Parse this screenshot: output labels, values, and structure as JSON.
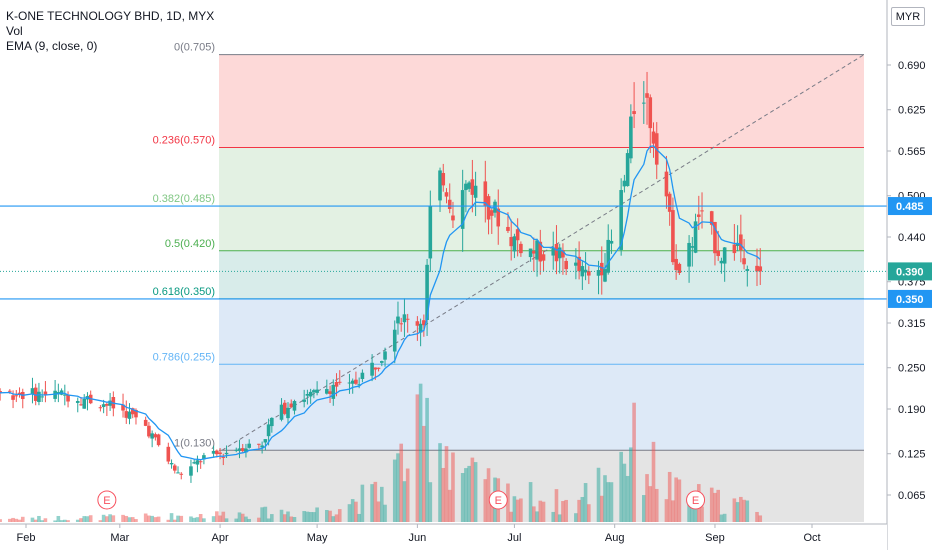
{
  "header": {
    "title": "K-ONE TECHNOLOGY BHD, 1D, MYX",
    "vol_label": "Vol",
    "ema_label": "EMA (9, close, 0)",
    "currency": "MYR"
  },
  "colors": {
    "up": "#26a69a",
    "down": "#ef5350",
    "ema": "#2196f3",
    "price_line": "#2196f3"
  },
  "chart_data": {
    "type": "candlestick",
    "timeframe": "1D",
    "x_labels": [
      "Feb",
      "Mar",
      "Apr",
      "May",
      "Jun",
      "Jul",
      "Aug",
      "Sep",
      "Oct"
    ],
    "y_ticks": [
      "0.690",
      "0.625",
      "0.565",
      "0.500",
      "0.440",
      "0.375",
      "0.315",
      "0.250",
      "0.190",
      "0.125",
      "0.065"
    ],
    "fib_levels": [
      {
        "label": "0(0.705)",
        "value": 0.705,
        "color": "#787b86",
        "fill": "#fdd9d8"
      },
      {
        "label": "0.236(0.570)",
        "value": 0.57,
        "color": "#f23645",
        "fill": "#e3f1e3"
      },
      {
        "label": "0.382(0.485)",
        "value": 0.485,
        "color": "#81c784",
        "fill": "#e3f1e3"
      },
      {
        "label": "0.5(0.420)",
        "value": 0.42,
        "color": "#4caf50",
        "fill": "#d8ecea"
      },
      {
        "label": "0.618(0.350)",
        "value": 0.35,
        "color": "#089981",
        "fill": "#dde9f7"
      },
      {
        "label": "0.786(0.255)",
        "value": 0.255,
        "color": "#64b5f6",
        "fill": "#dde9f7"
      },
      {
        "label": "1(0.130)",
        "value": 0.13,
        "color": "#787b86",
        "fill": "#e4e4e4"
      }
    ],
    "horizontal_lines": [
      0.485,
      0.35
    ],
    "price_tags": [
      {
        "label": "0.485",
        "value": 0.485,
        "color": "#2196f3"
      },
      {
        "label": "0.390",
        "value": 0.39,
        "color": "#26a69a"
      },
      {
        "label": "0.350",
        "value": 0.35,
        "color": "#2196f3"
      }
    ],
    "last_close": 0.39,
    "earnings_markers": [
      {
        "label": "E",
        "date": "2020-02-26"
      },
      {
        "label": "E",
        "date": "2020-06-26"
      },
      {
        "label": "E",
        "date": "2020-08-26"
      }
    ],
    "keypoints": [
      [
        "2020-01-15",
        0.215
      ],
      [
        "2020-01-31",
        0.212
      ],
      [
        "2020-02-14",
        0.21
      ],
      [
        "2020-02-24",
        0.2
      ],
      [
        "2020-03-03",
        0.185
      ],
      [
        "2020-03-09",
        0.165
      ],
      [
        "2020-03-16",
        0.115
      ],
      [
        "2020-03-19",
        0.095
      ],
      [
        "2020-03-23",
        0.105
      ],
      [
        "2020-03-27",
        0.12
      ],
      [
        "2020-04-02",
        0.125
      ],
      [
        "2020-04-07",
        0.135
      ],
      [
        "2020-04-14",
        0.14
      ],
      [
        "2020-04-17",
        0.175
      ],
      [
        "2020-04-24",
        0.205
      ],
      [
        "2020-04-30",
        0.21
      ],
      [
        "2020-05-06",
        0.225
      ],
      [
        "2020-05-11",
        0.22
      ],
      [
        "2020-05-15",
        0.24
      ],
      [
        "2020-05-20",
        0.26
      ],
      [
        "2020-05-26",
        0.33
      ],
      [
        "2020-05-29",
        0.315
      ],
      [
        "2020-06-03",
        0.32
      ],
      [
        "2020-06-05",
        0.475
      ],
      [
        "2020-06-09",
        0.53
      ],
      [
        "2020-06-12",
        0.48
      ],
      [
        "2020-06-17",
        0.52
      ],
      [
        "2020-06-22",
        0.49
      ],
      [
        "2020-06-26",
        0.47
      ],
      [
        "2020-06-30",
        0.44
      ],
      [
        "2020-07-06",
        0.42
      ],
      [
        "2020-07-13",
        0.415
      ],
      [
        "2020-07-17",
        0.405
      ],
      [
        "2020-07-21",
        0.39
      ],
      [
        "2020-07-24",
        0.38
      ],
      [
        "2020-07-28",
        0.4
      ],
      [
        "2020-07-31",
        0.43
      ],
      [
        "2020-08-04",
        0.52
      ],
      [
        "2020-08-07",
        0.63
      ],
      [
        "2020-08-10",
        0.655
      ],
      [
        "2020-08-13",
        0.59
      ],
      [
        "2020-08-17",
        0.5
      ],
      [
        "2020-08-19",
        0.42
      ],
      [
        "2020-08-21",
        0.39
      ],
      [
        "2020-08-24",
        0.42
      ],
      [
        "2020-08-27",
        0.47
      ],
      [
        "2020-08-31",
        0.44
      ],
      [
        "2020-09-03",
        0.415
      ],
      [
        "2020-09-08",
        0.43
      ],
      [
        "2020-09-11",
        0.41
      ],
      [
        "2020-09-15",
        0.39
      ]
    ],
    "volume_keypoints": [
      [
        "2020-01-15",
        0.02
      ],
      [
        "2020-03-15",
        0.04
      ],
      [
        "2020-05-01",
        0.08
      ],
      [
        "2020-05-20",
        0.2
      ],
      [
        "2020-06-05",
        0.7
      ],
      [
        "2020-06-20",
        0.25
      ],
      [
        "2020-07-20",
        0.12
      ],
      [
        "2020-08-06",
        0.55
      ],
      [
        "2020-08-20",
        0.2
      ],
      [
        "2020-09-15",
        0.1
      ]
    ],
    "ema_period": 9
  }
}
